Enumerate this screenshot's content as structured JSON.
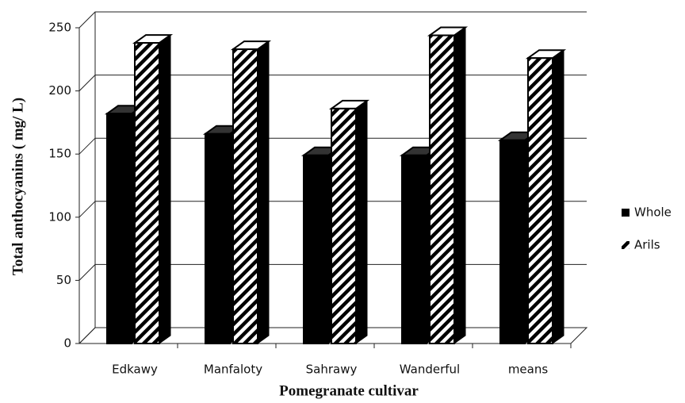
{
  "chart_data": {
    "type": "bar3d",
    "x_label": "Pomegranate cultivar",
    "y_label": "Total anthocyanins ( mg/ L)",
    "categories": [
      "Edkawy",
      "Manfaloty",
      "Sahrawy",
      "Wanderful",
      "means"
    ],
    "series": [
      {
        "name": "Whole",
        "color": "#000000",
        "fill_pattern": "solid",
        "values": [
          182,
          166,
          149,
          149,
          161
        ]
      },
      {
        "name": "Arils",
        "color": "#000000",
        "fill_pattern": "diagonal",
        "values": [
          238,
          233,
          186,
          244,
          226
        ]
      }
    ],
    "ylim": [
      0,
      250
    ],
    "yticks": [
      0,
      50,
      100,
      150,
      200,
      250
    ],
    "grid": true,
    "legend": "right"
  }
}
